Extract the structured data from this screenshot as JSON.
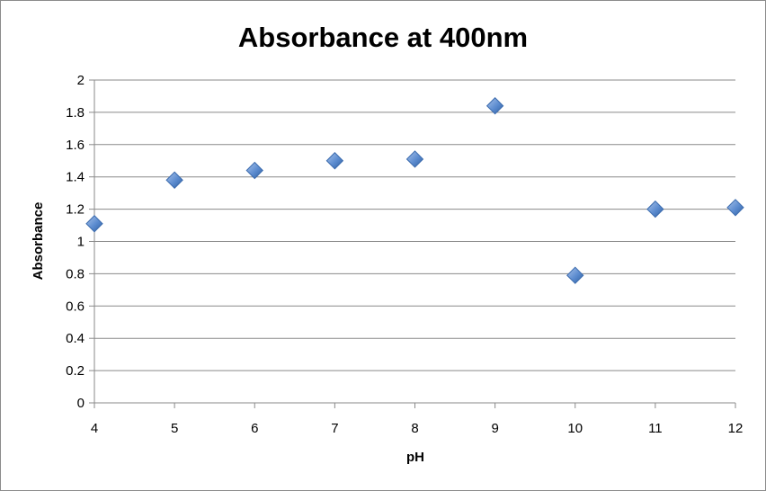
{
  "chart_data": {
    "type": "scatter",
    "title": "Absorbance at 400nm",
    "xlabel": "pH",
    "ylabel": "Absorbance",
    "xlim": [
      4,
      12
    ],
    "ylim": [
      0,
      2
    ],
    "x_ticks": [
      "4",
      "5",
      "6",
      "7",
      "8",
      "9",
      "10",
      "11",
      "12"
    ],
    "y_ticks": [
      "0",
      "0.2",
      "0.4",
      "0.6",
      "0.8",
      "1",
      "1.2",
      "1.4",
      "1.6",
      "1.8",
      "2"
    ],
    "grid": true,
    "legend": "none",
    "marker": "diamond",
    "marker_color": "#4f81bd",
    "series": [
      {
        "x": [
          4,
          5,
          6,
          7,
          8,
          9,
          10,
          11,
          12
        ],
        "y": [
          1.11,
          1.38,
          1.44,
          1.5,
          1.51,
          1.84,
          0.79,
          1.2,
          1.21
        ]
      }
    ]
  }
}
